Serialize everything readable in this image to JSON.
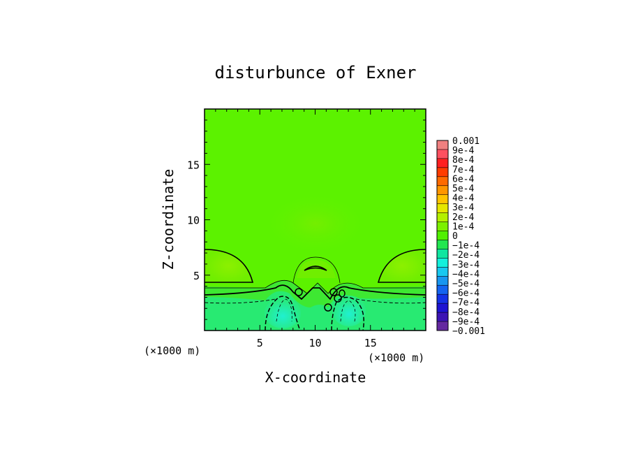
{
  "chart_data": {
    "type": "heatmap",
    "title": "disturbunce of Exner",
    "xlabel": "X-coordinate",
    "ylabel": "Z-coordinate",
    "x_unit_label": "(×1000 m)",
    "z_unit_label": "(×1000 m)",
    "xlim": [
      0,
      20
    ],
    "ylim": [
      0,
      20
    ],
    "x_ticks": [
      5,
      10,
      15
    ],
    "y_ticks": [
      5,
      10,
      15
    ],
    "colorbar": {
      "min": -0.001,
      "max": 0.001,
      "labels": [
        "0.001",
        "9e-4",
        "8e-4",
        "7e-4",
        "6e-4",
        "5e-4",
        "4e-4",
        "3e-4",
        "2e-4",
        "1e-4",
        "0",
        "-1e-4",
        "-2e-4",
        "-3e-4",
        "-4e-4",
        "-5e-4",
        "-6e-4",
        "-7e-4",
        "-8e-4",
        "-9e-4",
        "-0.001"
      ],
      "colors": [
        "#f08080",
        "#ff5060",
        "#ff2020",
        "#ff3c00",
        "#ff6a00",
        "#ff9600",
        "#ffc400",
        "#e6e600",
        "#b4f000",
        "#7cf000",
        "#50f000",
        "#22e650",
        "#10e6a0",
        "#14f0dc",
        "#18c8f0",
        "#1896f0",
        "#1464f0",
        "#1432e6",
        "#1e14d2",
        "#3c14b4",
        "#6428a0"
      ]
    },
    "field_description": "background field near +1e-4 to +2e-4; positive lobes at upper sides and center-top; negative cells below z≈4 near x≈7 and x≈12.5"
  }
}
